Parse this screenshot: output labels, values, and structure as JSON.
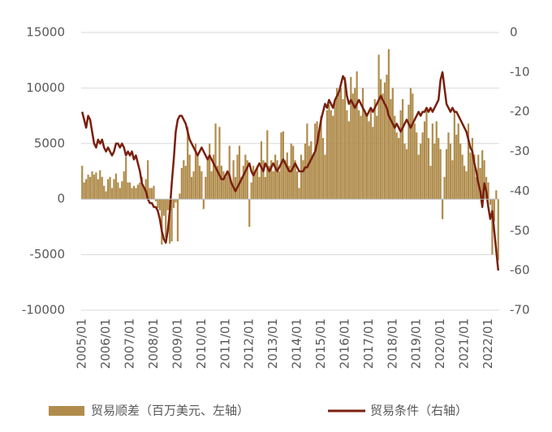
{
  "chart_data": {
    "type": "bar_line",
    "categories": [
      "2005/01",
      null,
      null,
      null,
      null,
      null,
      null,
      null,
      null,
      null,
      null,
      null,
      "2006/01",
      null,
      null,
      null,
      null,
      null,
      null,
      null,
      null,
      null,
      null,
      null,
      "2007/01",
      null,
      null,
      null,
      null,
      null,
      null,
      null,
      null,
      null,
      null,
      null,
      "2008/01",
      null,
      null,
      null,
      null,
      null,
      null,
      null,
      null,
      null,
      null,
      null,
      "2009/01",
      null,
      null,
      null,
      null,
      null,
      null,
      null,
      null,
      null,
      null,
      null,
      "2010/01",
      null,
      null,
      null,
      null,
      null,
      null,
      null,
      null,
      null,
      null,
      null,
      "2011/01",
      null,
      null,
      null,
      null,
      null,
      null,
      null,
      null,
      null,
      null,
      null,
      "2012/01",
      null,
      null,
      null,
      null,
      null,
      null,
      null,
      null,
      null,
      null,
      null,
      "2013/01",
      null,
      null,
      null,
      null,
      null,
      null,
      null,
      null,
      null,
      null,
      null,
      "2014/01",
      null,
      null,
      null,
      null,
      null,
      null,
      null,
      null,
      null,
      null,
      null,
      "2015/01",
      null,
      null,
      null,
      null,
      null,
      null,
      null,
      null,
      null,
      null,
      null,
      "2016/01",
      null,
      null,
      null,
      null,
      null,
      null,
      null,
      null,
      null,
      null,
      null,
      "2017/01",
      null,
      null,
      null,
      null,
      null,
      null,
      null,
      null,
      null,
      null,
      null,
      "2018/01",
      null,
      null,
      null,
      null,
      null,
      null,
      null,
      null,
      null,
      null,
      null,
      "2019/01",
      null,
      null,
      null,
      null,
      null,
      null,
      null,
      null,
      null,
      null,
      null,
      "2020/01",
      null,
      null,
      null,
      null,
      null,
      null,
      null,
      null,
      null,
      null,
      null,
      "2021/01",
      null,
      null,
      null,
      null,
      null,
      null,
      null,
      null,
      null,
      null,
      null,
      "2022/01",
      null,
      null,
      null,
      null,
      null
    ],
    "series": [
      {
        "name": "贸易顺差（百万美元、左轴）",
        "type": "bar",
        "color": "#b08c4c",
        "values": [
          3000,
          1500,
          1800,
          2200,
          2000,
          2500,
          2200,
          2400,
          1800,
          2600,
          2000,
          1200,
          700,
          1800,
          2000,
          1000,
          1800,
          2300,
          1500,
          1000,
          1600,
          2500,
          3800,
          1500,
          1500,
          1000,
          1200,
          1000,
          1300,
          1500,
          2000,
          1000,
          1800,
          3500,
          1000,
          1000,
          1200,
          -200,
          -800,
          -1000,
          -4100,
          -1500,
          -3500,
          -1000,
          -4000,
          -3800,
          -800,
          -300,
          -3800,
          500,
          2800,
          3500,
          3000,
          6500,
          4000,
          2000,
          2500,
          5000,
          4000,
          3000,
          2500,
          -900,
          2000,
          3800,
          5000,
          2500,
          4000,
          6800,
          3000,
          6500,
          3000,
          2500,
          2000,
          2500,
          4800,
          1500,
          3500,
          2000,
          4000,
          4800,
          2000,
          3000,
          4000,
          3500,
          -2500,
          1500,
          3000,
          2500,
          3000,
          2000,
          5200,
          3500,
          2000,
          6200,
          3000,
          3500,
          2500,
          4000,
          3500,
          2500,
          6000,
          6100,
          3500,
          4200,
          3000,
          5000,
          4800,
          3500,
          2500,
          1000,
          4000,
          3500,
          5000,
          6800,
          4800,
          5200,
          4000,
          6800,
          7000,
          6000,
          7500,
          5500,
          4000,
          8000,
          8500,
          8000,
          7500,
          9000,
          10000,
          9500,
          10000,
          9000,
          11000,
          8000,
          7000,
          11000,
          9500,
          10000,
          11500,
          8000,
          7500,
          10000,
          8000,
          7500,
          7000,
          8000,
          6500,
          9000,
          7500,
          13000,
          10800,
          9500,
          10500,
          11200,
          13500,
          9000,
          10000,
          7500,
          6000,
          5500,
          8000,
          9000,
          5000,
          4500,
          8500,
          10000,
          9500,
          6800,
          6000,
          4000,
          5000,
          6000,
          7000,
          8000,
          5500,
          3000,
          6800,
          5000,
          7000,
          5500,
          4500,
          -1800,
          2000,
          4500,
          6000,
          5000,
          3500,
          8000,
          5800,
          6800,
          5000,
          4000,
          3000,
          2500,
          6800,
          4200,
          5500,
          4000,
          2000,
          4000,
          2800,
          4400,
          3500,
          2000,
          1500,
          -500,
          -5000,
          -2000,
          800,
          -5500
        ]
      },
      {
        "name": "贸易条件（右轴）",
        "type": "line",
        "axis": "y2",
        "color": "#7a1f0e",
        "values": [
          -20,
          -22,
          -24,
          -21,
          -22,
          -25,
          -28,
          -29,
          -27,
          -28,
          -27,
          -29,
          -30,
          -29,
          -30,
          -31,
          -30,
          -28,
          -28,
          -29,
          -28,
          -29,
          -31,
          -30,
          -31,
          -30,
          -32,
          -31,
          -33,
          -35,
          -38,
          -39,
          -40,
          -42,
          -43,
          -43,
          -44,
          -44,
          -45,
          -47,
          -50,
          -52,
          -53,
          -50,
          -45,
          -38,
          -32,
          -25,
          -22,
          -21,
          -21,
          -22,
          -23,
          -25,
          -27,
          -28,
          -29,
          -30,
          -31,
          -30,
          -29,
          -30,
          -31,
          -32,
          -31,
          -32,
          -33,
          -34,
          -35,
          -36,
          -37,
          -37,
          -36,
          -35,
          -36,
          -38,
          -39,
          -40,
          -39,
          -38,
          -37,
          -36,
          -35,
          -34,
          -33,
          -35,
          -36,
          -35,
          -34,
          -33,
          -34,
          -35,
          -33,
          -34,
          -35,
          -34,
          -33,
          -34,
          -35,
          -34,
          -33,
          -32,
          -33,
          -34,
          -35,
          -35,
          -34,
          -33,
          -34,
          -35,
          -35,
          -35,
          -34,
          -34,
          -33,
          -32,
          -31,
          -30,
          -28,
          -25,
          -22,
          -20,
          -18,
          -19,
          -17,
          -18,
          -19,
          -17,
          -16,
          -15,
          -13,
          -11,
          -12,
          -16,
          -18,
          -17,
          -18,
          -19,
          -18,
          -17,
          -18,
          -19,
          -20,
          -21,
          -20,
          -19,
          -20,
          -19,
          -18,
          -17,
          -16,
          -17,
          -18,
          -19,
          -21,
          -22,
          -23,
          -24,
          -23,
          -24,
          -25,
          -24,
          -23,
          -22,
          -23,
          -24,
          -23,
          -22,
          -21,
          -20,
          -21,
          -20,
          -20,
          -19,
          -20,
          -19,
          -20,
          -19,
          -18,
          -17,
          -12,
          -10,
          -14,
          -18,
          -19,
          -20,
          -19,
          -20,
          -20,
          -21,
          -22,
          -23,
          -24,
          -25,
          -27,
          -29,
          -30,
          -33,
          -35,
          -38,
          -40,
          -44,
          -38,
          -40,
          -44,
          -47,
          -45,
          -50,
          -55,
          -60
        ]
      }
    ],
    "ylim": [
      -10000,
      15000
    ],
    "yticks": [
      -10000,
      -5000,
      0,
      5000,
      10000,
      15000
    ],
    "y2lim": [
      -70,
      0
    ],
    "y2ticks": [
      -70,
      -60,
      -50,
      -40,
      -30,
      -20,
      -10,
      0
    ],
    "grid": true
  }
}
